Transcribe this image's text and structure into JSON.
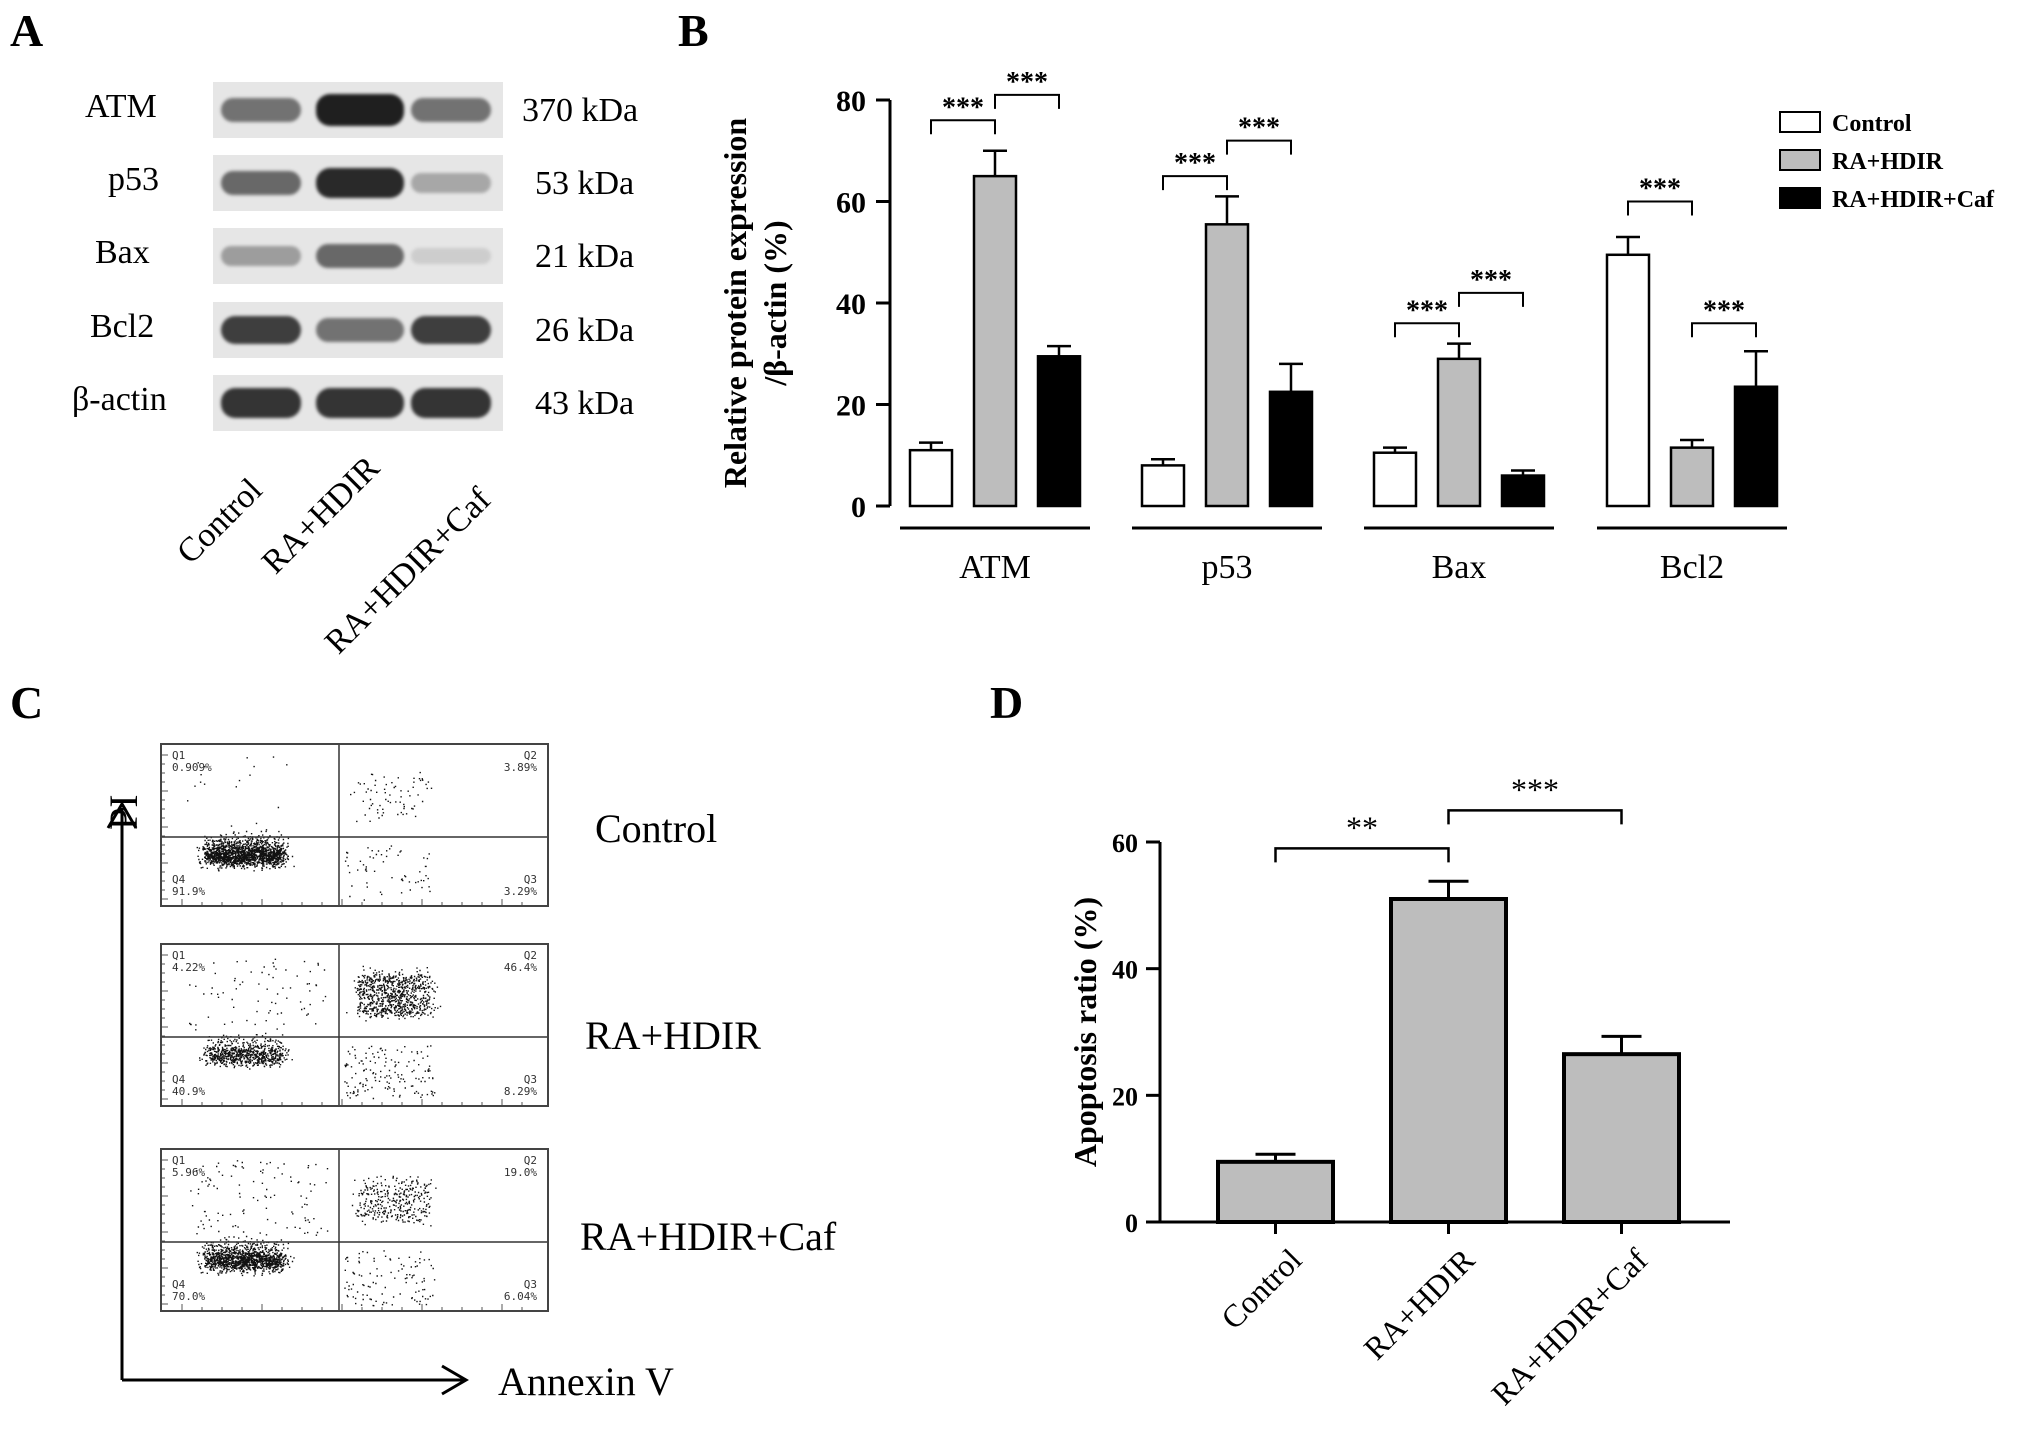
{
  "panels": {
    "A": "A",
    "B": "B",
    "C": "C",
    "D": "D"
  },
  "blot": {
    "proteins": [
      {
        "name": "ATM",
        "kda": "370 kDa",
        "intensity": [
          0.55,
          0.95,
          0.55
        ]
      },
      {
        "name": "p53",
        "kda": "53  kDa",
        "intensity": [
          0.6,
          0.9,
          0.3
        ]
      },
      {
        "name": "Bax",
        "kda": "21  kDa",
        "intensity": [
          0.35,
          0.6,
          0.12
        ]
      },
      {
        "name": "Bcl2",
        "kda": "26  kDa",
        "intensity": [
          0.8,
          0.55,
          0.8
        ]
      },
      {
        "name": "β-actin",
        "kda": "43  kDa",
        "intensity": [
          0.85,
          0.85,
          0.85
        ]
      }
    ],
    "lanes": [
      "Control",
      "RA+HDIR",
      "RA+HDIR+Caf"
    ]
  },
  "flow": {
    "axis_y": "PI",
    "axis_x": "Annexin V",
    "samples": [
      {
        "condition": "Control",
        "q1": "Q1",
        "q1v": "0.909%",
        "q2": "Q2",
        "q2v": "3.89%",
        "q3": "Q3",
        "q3v": "3.29%",
        "q4": "Q4",
        "q4v": "91.9%"
      },
      {
        "condition": "RA+HDIR",
        "q1": "Q1",
        "q1v": "4.22%",
        "q2": "Q2",
        "q2v": "46.4%",
        "q3": "Q3",
        "q3v": "8.29%",
        "q4": "Q4",
        "q4v": "40.9%"
      },
      {
        "condition": "RA+HDIR+Caf",
        "q1": "Q1",
        "q1v": "5.96%",
        "q2": "Q2",
        "q2v": "19.0%",
        "q3": "Q3",
        "q3v": "6.04%",
        "q4": "Q4",
        "q4v": "70.0%"
      }
    ]
  },
  "chart_data": [
    {
      "type": "bar",
      "panel": "B",
      "ylabel_line1": "Relative protein expression",
      "ylabel_line2": "/β-actin (%)",
      "ylim": [
        0,
        80
      ],
      "yticks": [
        "0",
        "20",
        "40",
        "60",
        "80"
      ],
      "categories": [
        "ATM",
        "p53",
        "Bax",
        "Bcl2"
      ],
      "series": [
        {
          "name": "Control",
          "color": "#ffffff",
          "values": [
            11,
            8,
            10.5,
            49.5
          ],
          "errors": [
            1.5,
            1.2,
            1,
            3.5
          ]
        },
        {
          "name": "RA+HDIR",
          "color": "#bdbdbd",
          "values": [
            65,
            55.5,
            29,
            11.5
          ],
          "errors": [
            5,
            5.5,
            3,
            1.5
          ]
        },
        {
          "name": "RA+HDIR+Caf",
          "color": "#000000",
          "values": [
            29.5,
            22.5,
            6,
            23.5
          ],
          "errors": [
            2,
            5.5,
            1,
            7
          ]
        }
      ],
      "significance": [
        {
          "cat": 0,
          "from": 0,
          "to": 1,
          "y": 76,
          "label": "***"
        },
        {
          "cat": 0,
          "from": 1,
          "to": 2,
          "y": 81,
          "label": "***"
        },
        {
          "cat": 1,
          "from": 0,
          "to": 1,
          "y": 65,
          "label": "***"
        },
        {
          "cat": 1,
          "from": 1,
          "to": 2,
          "y": 72,
          "label": "***"
        },
        {
          "cat": 2,
          "from": 0,
          "to": 1,
          "y": 36,
          "label": "***"
        },
        {
          "cat": 2,
          "from": 1,
          "to": 2,
          "y": 42,
          "label": "***"
        },
        {
          "cat": 3,
          "from": 0,
          "to": 1,
          "y": 60,
          "label": "***"
        },
        {
          "cat": 3,
          "from": 1,
          "to": 2,
          "y": 36,
          "label": "***"
        }
      ],
      "legend_position": "top-right"
    },
    {
      "type": "bar",
      "panel": "D",
      "ylabel": "Apoptosis  ratio (%)",
      "ylim": [
        0,
        60
      ],
      "yticks": [
        "0",
        "20",
        "40",
        "60"
      ],
      "categories": [
        "Control",
        "RA+HDIR",
        "RA+HDIR+Caf"
      ],
      "values": [
        9.5,
        51,
        26.5
      ],
      "errors": [
        1.2,
        2.8,
        2.8
      ],
      "color": "#bdbdbd",
      "significance": [
        {
          "from": 0,
          "to": 1,
          "y": 59,
          "label": "**"
        },
        {
          "from": 1,
          "to": 2,
          "y": 65,
          "label": "***"
        }
      ]
    }
  ]
}
